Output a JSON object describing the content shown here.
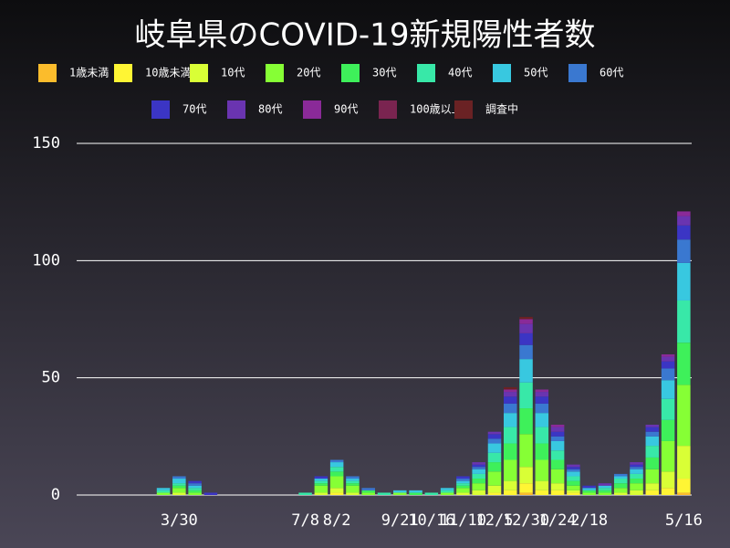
{
  "chart_data": {
    "type": "stacked-bar",
    "title": "岐阜県のCOVID-19新規陽性者数",
    "categories": [
      null,
      null,
      null,
      null,
      null,
      null,
      "3/30",
      null,
      null,
      null,
      null,
      null,
      null,
      null,
      "7/8",
      null,
      "8/2",
      null,
      null,
      null,
      "9/21",
      null,
      "10/16",
      null,
      "11/10",
      null,
      "12/5",
      null,
      "12/30",
      null,
      "1/24",
      null,
      "2/18",
      null,
      null,
      null,
      null,
      null,
      "5/16"
    ],
    "ylim": [
      0,
      150
    ],
    "yticks": [
      0,
      50,
      100,
      150
    ],
    "grid": true,
    "series": [
      {
        "name": "1歳未満",
        "color": "#fbbc2c",
        "values": [
          0,
          0,
          0,
          0,
          0,
          0,
          0,
          0,
          0,
          0,
          0,
          0,
          0,
          0,
          0,
          0,
          0,
          0,
          0,
          0,
          0,
          0,
          0,
          0,
          0,
          0,
          0,
          0,
          1,
          0,
          0,
          0,
          0,
          0,
          0,
          0,
          0,
          0,
          1
        ]
      },
      {
        "name": "10歳未満",
        "color": "#fff534",
        "values": [
          0,
          0,
          0,
          0,
          0,
          0,
          0,
          0,
          0,
          0,
          0,
          0,
          0,
          0,
          0,
          0,
          1,
          0,
          0,
          0,
          0,
          0,
          0,
          0,
          0,
          0,
          1,
          2,
          4,
          2,
          2,
          1,
          0,
          0,
          0,
          0,
          2,
          3,
          6
        ]
      },
      {
        "name": "10代",
        "color": "#d9ff36",
        "values": [
          0,
          0,
          0,
          0,
          0,
          0,
          1,
          0,
          0,
          0,
          0,
          0,
          0,
          0,
          0,
          1,
          2,
          1,
          0,
          0,
          0,
          0,
          0,
          0,
          1,
          2,
          3,
          4,
          7,
          4,
          3,
          1,
          0,
          0,
          1,
          2,
          3,
          7,
          14
        ]
      },
      {
        "name": "20代",
        "color": "#86ff35",
        "values": [
          0,
          0,
          0,
          0,
          0,
          1,
          2,
          1,
          0,
          0,
          0,
          0,
          0,
          0,
          0,
          3,
          5,
          3,
          1,
          0,
          1,
          0,
          0,
          1,
          2,
          3,
          6,
          9,
          14,
          9,
          6,
          2,
          1,
          1,
          2,
          3,
          6,
          13,
          26
        ]
      },
      {
        "name": "30代",
        "color": "#3ef05a",
        "values": [
          0,
          0,
          0,
          0,
          0,
          0,
          1,
          1,
          0,
          0,
          0,
          0,
          0,
          0,
          0,
          1,
          2,
          1,
          1,
          0,
          0,
          1,
          0,
          0,
          1,
          2,
          4,
          7,
          11,
          7,
          4,
          2,
          1,
          1,
          2,
          2,
          5,
          9,
          18
        ]
      },
      {
        "name": "40代",
        "color": "#38e8a8",
        "values": [
          0,
          0,
          0,
          0,
          0,
          1,
          1,
          1,
          0,
          0,
          0,
          0,
          0,
          0,
          1,
          1,
          2,
          1,
          0,
          1,
          0,
          0,
          1,
          1,
          1,
          2,
          4,
          7,
          11,
          7,
          4,
          2,
          0,
          1,
          2,
          2,
          5,
          9,
          18
        ]
      },
      {
        "name": "50代",
        "color": "#38c8e0",
        "values": [
          0,
          0,
          0,
          0,
          0,
          1,
          2,
          1,
          0,
          0,
          0,
          0,
          0,
          0,
          0,
          1,
          2,
          1,
          0,
          0,
          1,
          1,
          0,
          1,
          1,
          2,
          4,
          6,
          10,
          6,
          4,
          2,
          1,
          1,
          1,
          2,
          4,
          8,
          16
        ]
      },
      {
        "name": "60代",
        "color": "#3a78d0",
        "values": [
          0,
          0,
          0,
          0,
          0,
          0,
          1,
          1,
          0,
          0,
          0,
          0,
          0,
          0,
          0,
          0,
          1,
          1,
          1,
          0,
          0,
          0,
          0,
          0,
          1,
          1,
          2,
          4,
          6,
          4,
          2,
          1,
          0,
          0,
          1,
          1,
          2,
          5,
          10
        ]
      },
      {
        "name": "70代",
        "color": "#3b35c4",
        "values": [
          0,
          0,
          0,
          0,
          0,
          0,
          0,
          1,
          1,
          0,
          0,
          0,
          0,
          0,
          0,
          1,
          0,
          0,
          0,
          0,
          0,
          0,
          0,
          0,
          1,
          1,
          2,
          3,
          5,
          3,
          2,
          1,
          1,
          0,
          0,
          1,
          2,
          3,
          6
        ]
      },
      {
        "name": "80代",
        "color": "#6a34b0",
        "values": [
          0,
          0,
          0,
          0,
          0,
          0,
          0,
          0,
          0,
          0,
          0,
          0,
          0,
          0,
          0,
          0,
          0,
          0,
          0,
          0,
          0,
          0,
          0,
          0,
          0,
          1,
          1,
          2,
          4,
          2,
          2,
          1,
          0,
          1,
          0,
          1,
          1,
          2,
          4
        ]
      },
      {
        "name": "90代",
        "color": "#8a2a98",
        "values": [
          0,
          0,
          0,
          0,
          0,
          0,
          0,
          0,
          0,
          0,
          0,
          0,
          0,
          0,
          0,
          0,
          0,
          0,
          0,
          0,
          0,
          0,
          0,
          0,
          0,
          0,
          0,
          1,
          2,
          1,
          1,
          0,
          0,
          0,
          0,
          0,
          0,
          1,
          2
        ]
      },
      {
        "name": "100歳以上",
        "color": "#7a2450",
        "values": [
          0,
          0,
          0,
          0,
          0,
          0,
          0,
          0,
          0,
          0,
          0,
          0,
          0,
          0,
          0,
          0,
          0,
          0,
          0,
          0,
          0,
          0,
          0,
          0,
          0,
          0,
          0,
          0,
          0,
          0,
          0,
          0,
          0,
          0,
          0,
          0,
          0,
          0,
          0
        ]
      },
      {
        "name": "調査中",
        "color": "#6a2224",
        "values": [
          0,
          0,
          0,
          0,
          0,
          0,
          0,
          0,
          0,
          0,
          0,
          0,
          0,
          0,
          0,
          0,
          0,
          0,
          0,
          0,
          0,
          0,
          0,
          0,
          0,
          0,
          0,
          1,
          1,
          0,
          0,
          0,
          0,
          0,
          0,
          0,
          0,
          0,
          0
        ]
      }
    ]
  }
}
